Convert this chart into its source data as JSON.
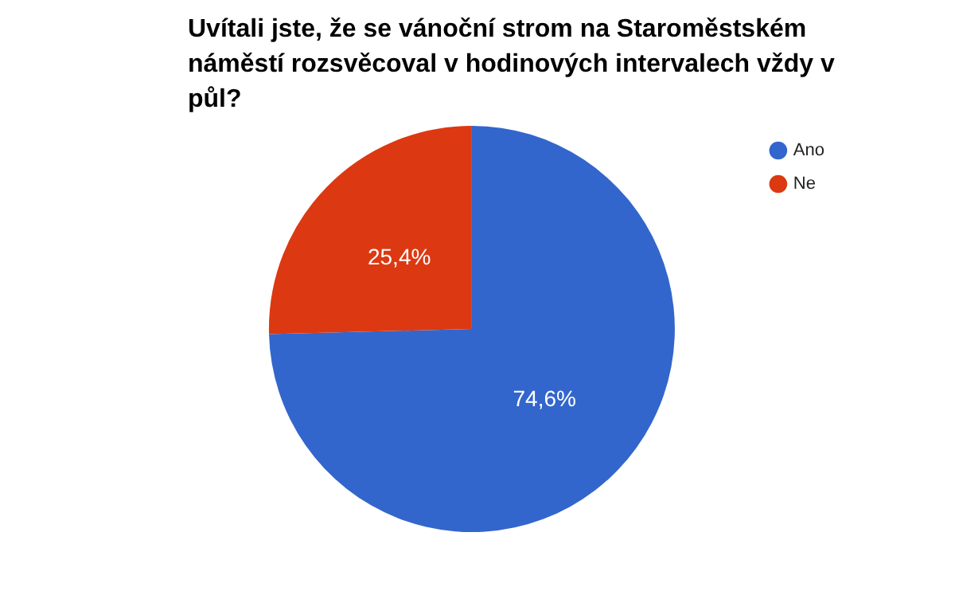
{
  "chart_data": {
    "type": "pie",
    "title": "Uvítali jste, že se vánoční strom na Staroměstském náměstí rozsvěcoval v hodinových intervalech vždy v půl?",
    "categories": [
      "Ano",
      "Ne"
    ],
    "values": [
      74.6,
      25.4
    ],
    "value_labels": [
      "74,6%",
      "25,4%"
    ],
    "colors": [
      "#3366cc",
      "#dc3912"
    ],
    "legend": "top right"
  }
}
